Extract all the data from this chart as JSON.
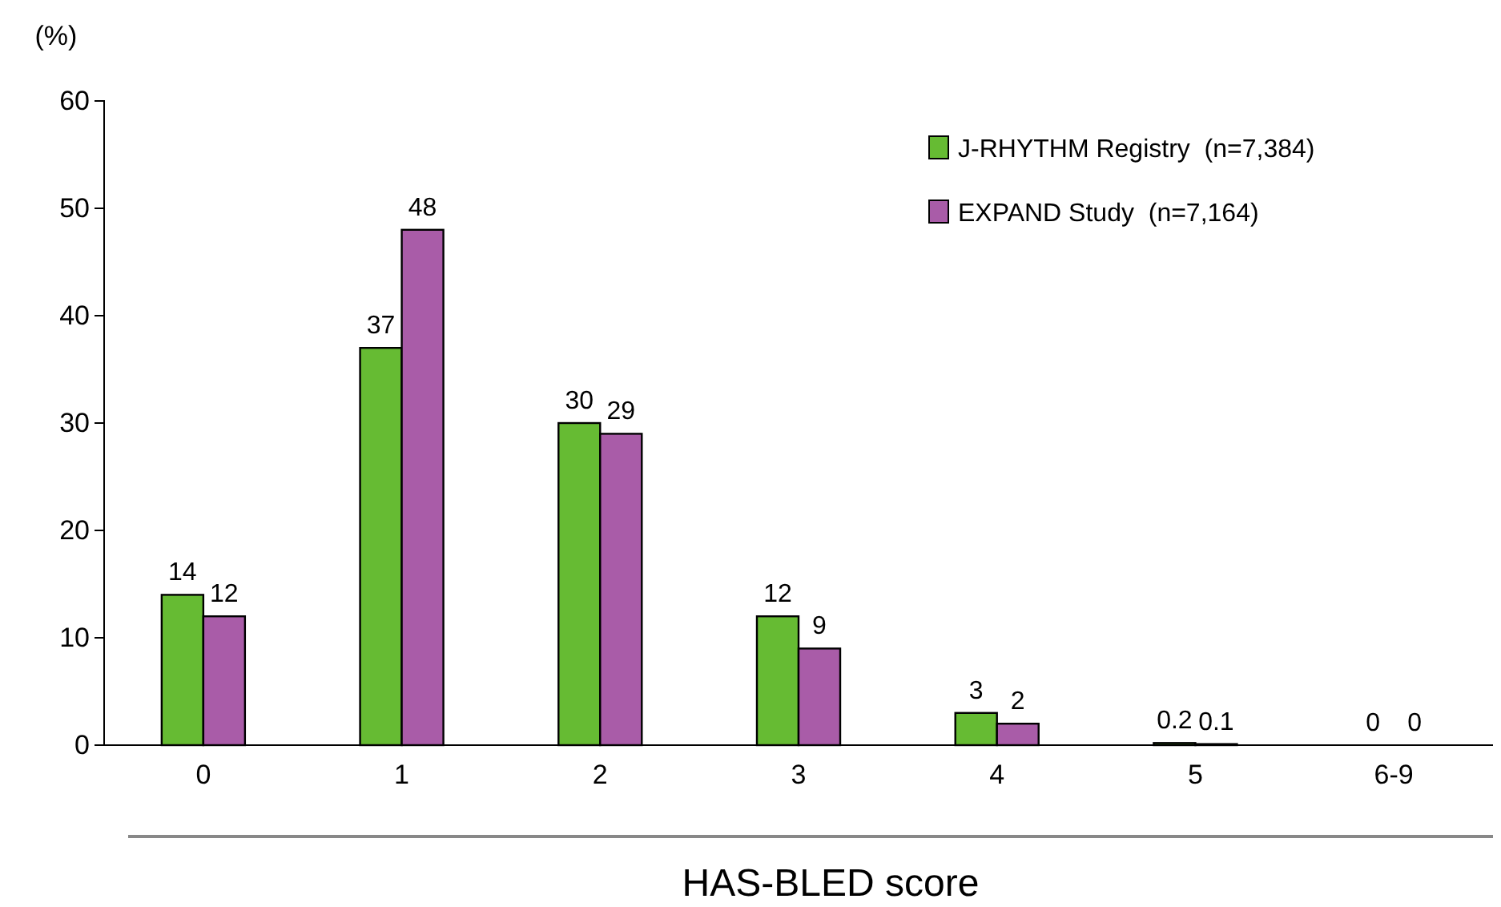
{
  "chart_data": {
    "type": "bar",
    "xlabel": "HAS-BLED score",
    "ylabel": "(%)",
    "categories": [
      "0",
      "1",
      "2",
      "3",
      "4",
      "5",
      "6-9"
    ],
    "series": [
      {
        "name": "J-RHYTHM Registry  (n=7,384)",
        "color": "#66bb33",
        "values": [
          14,
          37,
          30,
          12,
          3,
          0.2,
          0
        ]
      },
      {
        "name": "EXPAND Study  (n=7,164)",
        "color": "#a95ca8",
        "values": [
          12,
          48,
          29,
          9,
          2,
          0.1,
          0
        ]
      }
    ],
    "ylim": [
      0,
      60
    ],
    "yticks": [
      0,
      10,
      20,
      30,
      40,
      50,
      60
    ],
    "data_labels": true,
    "legend": "top right",
    "grid": false
  }
}
